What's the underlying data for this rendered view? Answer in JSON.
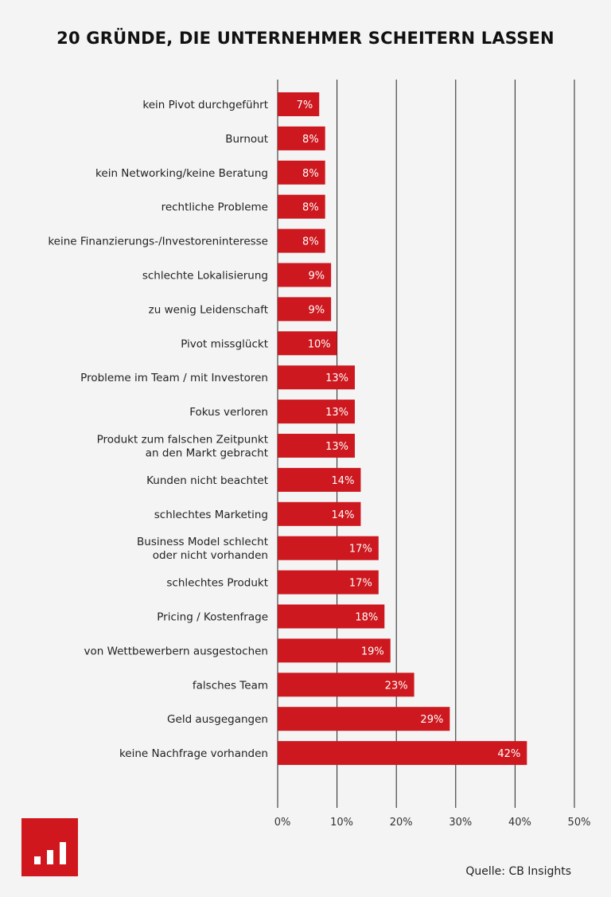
{
  "title": "20 GRÜNDE, DIE UNTERNEHMER SCHEITERN LASSEN",
  "source": "Quelle: CB Insights",
  "logo_icon": "bar-chart-logo-icon",
  "colors": {
    "bar": "#cc181e",
    "background": "#f4f4f4",
    "grid": "#222222"
  },
  "chart_data": {
    "type": "bar",
    "orientation": "horizontal",
    "title": "20 GRÜNDE, DIE UNTERNEHMER SCHEITERN LASSEN",
    "categories": [
      [
        "kein Pivot durchgeführt"
      ],
      [
        "Burnout"
      ],
      [
        "kein Networking/keine Beratung"
      ],
      [
        "rechtliche Probleme"
      ],
      [
        "keine Finanzierungs-/Investoreninteresse"
      ],
      [
        "schlechte Lokalisierung"
      ],
      [
        "zu wenig Leidenschaft"
      ],
      [
        "Pivot missglückt"
      ],
      [
        "Probleme im Team / mit Investoren"
      ],
      [
        "Fokus verloren"
      ],
      [
        "Produkt zum falschen Zeitpunkt",
        "an den Markt gebracht"
      ],
      [
        "Kunden nicht beachtet"
      ],
      [
        "schlechtes Marketing"
      ],
      [
        "Business Model schlecht",
        "oder nicht vorhanden"
      ],
      [
        "schlechtes Produkt"
      ],
      [
        "Pricing / Kostenfrage"
      ],
      [
        "von Wettbewerbern ausgestochen"
      ],
      [
        "falsches Team"
      ],
      [
        "Geld ausgegangen"
      ],
      [
        "keine Nachfrage vorhanden"
      ]
    ],
    "values": [
      7,
      8,
      8,
      8,
      8,
      9,
      9,
      10,
      13,
      13,
      13,
      14,
      14,
      17,
      17,
      18,
      19,
      23,
      29,
      42
    ],
    "data_labels": [
      "7%",
      "8%",
      "8%",
      "8%",
      "8%",
      "9%",
      "9%",
      "10%",
      "13%",
      "13%",
      "13%",
      "14%",
      "14%",
      "17%",
      "17%",
      "18%",
      "19%",
      "23%",
      "29%",
      "42%"
    ],
    "xlim": [
      0,
      50
    ],
    "x_ticks": [
      0,
      10,
      20,
      30,
      40,
      50
    ],
    "x_tick_labels": [
      "0%",
      "10%",
      "20%",
      "30%",
      "40%",
      "50%"
    ],
    "grid": true,
    "xlabel": "",
    "ylabel": ""
  }
}
